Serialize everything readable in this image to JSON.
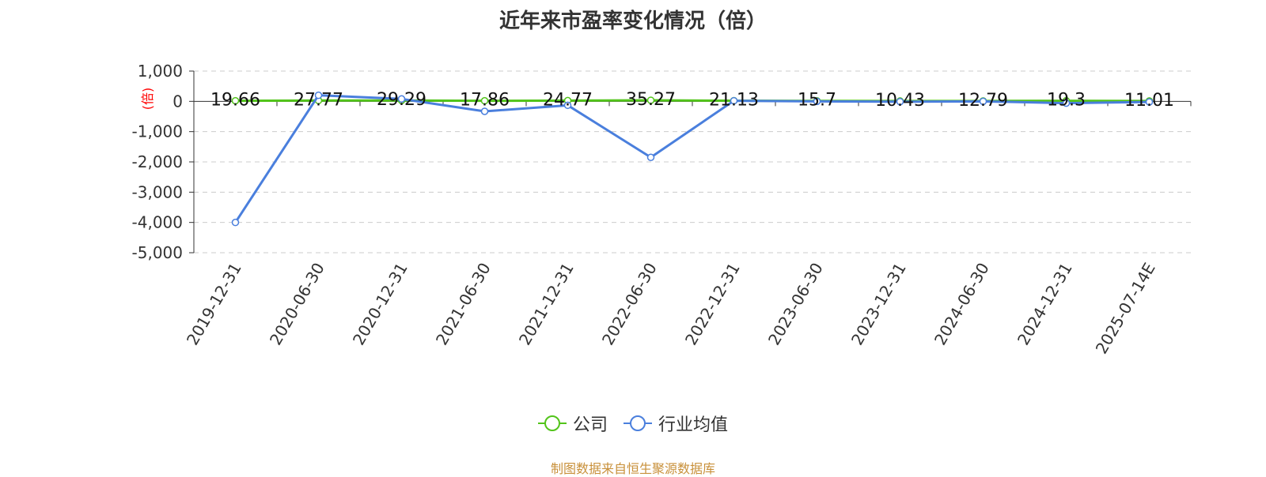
{
  "chart_data": {
    "type": "line",
    "title": "近年来市盈率变化情况（倍）",
    "ylabel": "(倍)",
    "ylim": [
      -5000,
      1000
    ],
    "yticks": [
      1000,
      0,
      -1000,
      -2000,
      -3000,
      -4000,
      -5000
    ],
    "ytick_labels": [
      "1,000",
      "0",
      "-1,000",
      "-2,000",
      "-3,000",
      "-4,000",
      "-5,000"
    ],
    "grid": true,
    "legend_position": "bottom",
    "categories": [
      "2019-12-31",
      "2020-06-30",
      "2020-12-31",
      "2021-06-30",
      "2021-12-31",
      "2022-06-30",
      "2022-12-31",
      "2023-06-30",
      "2023-12-31",
      "2024-06-30",
      "2024-12-31",
      "2025-07-14E"
    ],
    "series": [
      {
        "name": "公司",
        "color": "#52c41a",
        "values": [
          19.66,
          27.77,
          29.29,
          17.86,
          24.77,
          35.27,
          21.13,
          15.7,
          10.43,
          12.79,
          19.3,
          11.01
        ],
        "labels": [
          "19.66",
          "27.77",
          "29.29",
          "17.86",
          "24.77",
          "35.27",
          "21.13",
          "15.7",
          "10.43",
          "12.79",
          "19.3",
          "11.01"
        ]
      },
      {
        "name": "行业均值",
        "color": "#4a7fdd",
        "values": [
          -4000,
          200,
          80,
          -330,
          -130,
          -1850,
          20,
          0,
          -10,
          0,
          -60,
          -20
        ]
      }
    ]
  },
  "legend": {
    "company": "公司",
    "industry": "行业均值"
  },
  "footer": {
    "source": "制图数据来自恒生聚源数据库"
  }
}
